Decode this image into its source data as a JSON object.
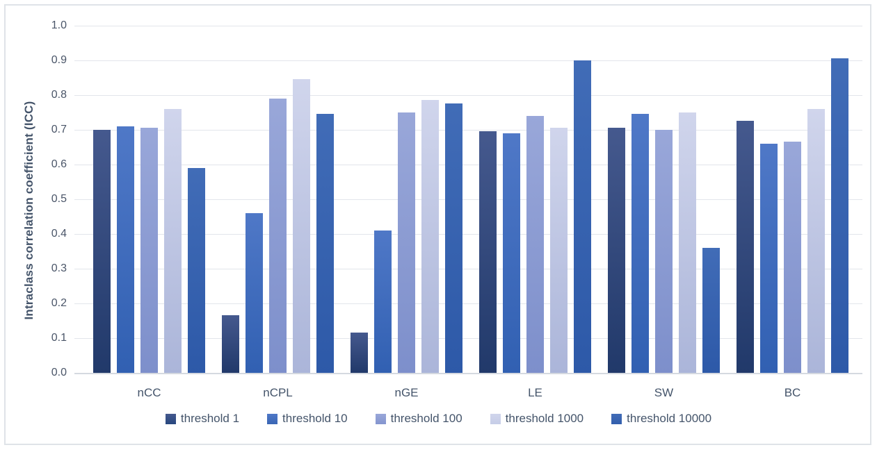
{
  "chart_data": {
    "type": "bar",
    "title": "",
    "ylabel": "Intraclass correlation coefficient (ICC)",
    "xlabel": "",
    "ylim": [
      0.0,
      1.0
    ],
    "y_tick_labels": [
      "1.0",
      "0.9",
      "0.8",
      "0.7",
      "0.6",
      "0.5",
      "0.4",
      "0.3",
      "0.2",
      "0.1",
      "0.0"
    ],
    "grid": "horizontal",
    "legend_position": "bottom",
    "categories": [
      "nCC",
      "nCPL",
      "nGE",
      "LE",
      "SW",
      "BC"
    ],
    "series": [
      {
        "name": "threshold 1",
        "values": [
          0.7,
          0.165,
          0.115,
          0.695,
          0.705,
          0.725
        ],
        "color_top": "#45598e",
        "color_bottom": "#21396a",
        "legend_color": "#27477f"
      },
      {
        "name": "threshold 10",
        "values": [
          0.71,
          0.46,
          0.41,
          0.69,
          0.745,
          0.66
        ],
        "color_top": "#4f78c7",
        "color_bottom": "#3160b2",
        "legend_color": "#3a66b4"
      },
      {
        "name": "threshold 100",
        "values": [
          0.705,
          0.79,
          0.75,
          0.74,
          0.7,
          0.665
        ],
        "color_top": "#99a7d9",
        "color_bottom": "#7d8fcb",
        "legend_color": "#8495cf"
      },
      {
        "name": "threshold 1000",
        "values": [
          0.76,
          0.845,
          0.785,
          0.705,
          0.75,
          0.76
        ],
        "color_top": "#d0d5ec",
        "color_bottom": "#abb5d9",
        "legend_color": "#c6cde7"
      },
      {
        "name": "threshold 10000",
        "values": [
          0.59,
          0.745,
          0.775,
          0.9,
          0.36,
          0.905
        ],
        "color_top": "#416cb7",
        "color_bottom": "#2d59a8",
        "legend_color": "#335fad"
      }
    ],
    "colors": {
      "text": "#44546a",
      "tick_text": "#4a5568",
      "gridline": "#e2e5eb",
      "axis_line": "#d5d9e0",
      "chart_border": "#dfe3e8",
      "background": "#ffffff"
    }
  }
}
